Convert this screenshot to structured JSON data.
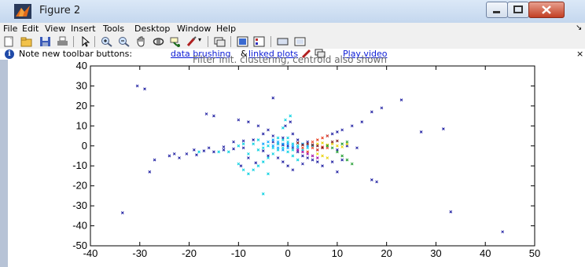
{
  "window": {
    "title": "Figure 2",
    "icons": {
      "app": "matlab-icon",
      "minimize": "minimize-icon",
      "maximize": "maximize-icon",
      "close": "close-icon"
    }
  },
  "menubar": {
    "items": [
      "File",
      "Edit",
      "View",
      "Insert",
      "Tools",
      "Desktop",
      "Window",
      "Help"
    ],
    "overflow_arrow": "↘"
  },
  "toolbar": {
    "buttons": [
      "new-figure-icon",
      "open-file-icon",
      "save-icon",
      "print-icon",
      "pointer-icon",
      "zoom-in-icon",
      "zoom-out-icon",
      "pan-icon",
      "rotate-3d-icon",
      "data-cursor-icon",
      "brush-icon",
      "link-plot-icon",
      "colorbar-icon",
      "legend-icon",
      "hide-plot-tools-icon",
      "show-plot-tools-icon"
    ]
  },
  "infobar": {
    "text": "Note new toolbar buttons:",
    "link_brushing": "data brushing",
    "amp": "&",
    "link_linked": "linked plots",
    "link_video": "Play video",
    "close": "×"
  },
  "figure": {
    "partial_title": "Filter init. clustering, centroid also shown"
  },
  "chart_data": {
    "type": "scatter",
    "title": "Filter init. clustering, centroid also shown",
    "xlim": [
      -40,
      50
    ],
    "ylim": [
      -50,
      40
    ],
    "x_ticks": [
      -40,
      -30,
      -20,
      -10,
      0,
      10,
      20,
      30,
      40,
      50
    ],
    "y_ticks": [
      -50,
      -40,
      -30,
      -20,
      -10,
      0,
      10,
      20,
      30,
      40
    ],
    "x_tick_labels": [
      "-40",
      "-30",
      "-20",
      "-10",
      "0",
      "10",
      "20",
      "30",
      "40",
      "50"
    ],
    "y_tick_labels": [
      "-50",
      "-40",
      "-30",
      "-20",
      "-10",
      "0",
      "10",
      "20",
      "30",
      "40"
    ],
    "grid": false,
    "series": [
      {
        "color": "#1a1aa0",
        "marker": "x",
        "values": [
          [
            -30.5,
            30
          ],
          [
            -29,
            28.5
          ],
          [
            -16.5,
            16
          ],
          [
            -15,
            15
          ],
          [
            -10,
            13
          ],
          [
            -8,
            12
          ],
          [
            -6,
            10
          ],
          [
            -4,
            8
          ],
          [
            -3,
            24
          ],
          [
            -33.5,
            -33.5
          ],
          [
            -28,
            -13
          ],
          [
            -27,
            -7
          ],
          [
            -22,
            -6
          ],
          [
            -20.5,
            -4
          ],
          [
            -18.5,
            -4.5
          ],
          [
            -17,
            -2.5
          ],
          [
            -15,
            -3
          ],
          [
            -13,
            -2
          ],
          [
            -11,
            -1.5
          ],
          [
            -9,
            -1
          ],
          [
            -8,
            -6
          ],
          [
            -6.5,
            -8.5
          ],
          [
            -9.5,
            -10
          ],
          [
            -5,
            -2.5
          ],
          [
            -4,
            -5
          ],
          [
            -3,
            2
          ],
          [
            -2,
            1
          ],
          [
            -1,
            0.5
          ],
          [
            0,
            0
          ],
          [
            1,
            -1
          ],
          [
            2,
            -3
          ],
          [
            3,
            -5
          ],
          [
            4,
            -6
          ],
          [
            5,
            -7
          ],
          [
            6,
            -8
          ],
          [
            7,
            -10
          ],
          [
            9,
            -8
          ],
          [
            11,
            -7
          ],
          [
            8,
            5
          ],
          [
            9,
            6
          ],
          [
            10,
            7
          ],
          [
            11,
            8
          ],
          [
            13,
            10
          ],
          [
            15,
            12
          ],
          [
            17,
            17
          ],
          [
            19,
            19
          ],
          [
            23,
            23
          ],
          [
            27,
            7
          ],
          [
            31.5,
            8.5
          ],
          [
            33,
            -33
          ],
          [
            43.5,
            -43
          ],
          [
            18,
            -18
          ],
          [
            17,
            -17
          ],
          [
            10,
            -13
          ],
          [
            10,
            -2
          ],
          [
            12,
            0
          ],
          [
            14,
            -1
          ],
          [
            6,
            -2
          ],
          [
            4,
            2
          ],
          [
            2,
            3
          ],
          [
            -1,
            4
          ],
          [
            -3,
            5
          ],
          [
            -5,
            6
          ],
          [
            -2,
            -6
          ],
          [
            -1,
            -8
          ],
          [
            0,
            -10
          ],
          [
            1,
            -12
          ],
          [
            3,
            -9
          ],
          [
            -0.5,
            10
          ],
          [
            0.5,
            12
          ],
          [
            1,
            6
          ],
          [
            -7,
            3
          ],
          [
            -9,
            2.5
          ],
          [
            -11,
            2
          ],
          [
            -13,
            -0.5
          ],
          [
            -16,
            -1
          ],
          [
            -19,
            -2
          ],
          [
            -23,
            -4
          ],
          [
            -24,
            -5
          ]
        ]
      },
      {
        "color": "#00cfe0",
        "marker": "x",
        "values": [
          [
            -1,
            -1
          ],
          [
            -2,
            -2
          ],
          [
            0,
            -3
          ],
          [
            1,
            -2
          ],
          [
            -3,
            -1
          ],
          [
            -4,
            0
          ],
          [
            -5,
            -1
          ],
          [
            -6,
            -2
          ],
          [
            -2,
            1
          ],
          [
            0,
            2
          ],
          [
            1,
            1
          ],
          [
            2,
            0
          ],
          [
            -1,
            3
          ],
          [
            -2,
            4
          ],
          [
            0,
            4
          ],
          [
            -3,
            -4
          ],
          [
            -4,
            -6
          ],
          [
            -5,
            -8
          ],
          [
            -6,
            -10
          ],
          [
            -7,
            -12
          ],
          [
            -4,
            -14
          ],
          [
            -5,
            -24
          ],
          [
            -8,
            -14
          ],
          [
            -9,
            -12
          ],
          [
            -10,
            -9
          ],
          [
            -8,
            -4
          ],
          [
            -12,
            -3
          ],
          [
            -14,
            -3
          ],
          [
            -18,
            -3
          ],
          [
            1,
            -5
          ],
          [
            2,
            -7
          ],
          [
            3,
            -2
          ],
          [
            4,
            -1
          ],
          [
            5,
            0
          ],
          [
            -1,
            9
          ],
          [
            -0.5,
            13
          ],
          [
            0.5,
            15
          ],
          [
            -9,
            1
          ],
          [
            -6,
            3
          ],
          [
            -7,
            1
          ],
          [
            -10,
            0
          ]
        ]
      },
      {
        "color": "#00a0ff",
        "marker": "x",
        "values": [
          [
            -3,
            0
          ],
          [
            -2,
            -1
          ],
          [
            -1,
            1
          ],
          [
            0,
            1
          ],
          [
            1,
            0
          ],
          [
            2,
            -1
          ],
          [
            -2,
            2
          ],
          [
            -3,
            3
          ],
          [
            -4,
            2
          ],
          [
            -5,
            1
          ],
          [
            0,
            -1
          ],
          [
            -1,
            -2
          ],
          [
            3,
            1
          ],
          [
            4,
            0
          ]
        ]
      },
      {
        "color": "#e83a1a",
        "marker": "x",
        "values": [
          [
            5,
            2
          ],
          [
            6,
            3
          ],
          [
            7,
            4
          ],
          [
            8,
            5
          ],
          [
            5,
            -1
          ],
          [
            6,
            -2
          ],
          [
            4,
            -3
          ],
          [
            3,
            -1
          ],
          [
            7,
            -0.5
          ],
          [
            8,
            -1
          ]
        ]
      },
      {
        "color": "#e8d000",
        "marker": "x",
        "values": [
          [
            6,
            1
          ],
          [
            7,
            1.5
          ],
          [
            8,
            0.5
          ],
          [
            9,
            1
          ],
          [
            10,
            0
          ],
          [
            11,
            -0.5
          ],
          [
            12,
            1
          ],
          [
            6,
            -4
          ],
          [
            7,
            -5
          ],
          [
            8,
            -6
          ]
        ]
      },
      {
        "color": "#7a1010",
        "marker": "x",
        "values": [
          [
            4,
            1
          ],
          [
            5,
            0.5
          ],
          [
            6,
            0
          ],
          [
            7,
            -1
          ],
          [
            3,
            0.5
          ],
          [
            2,
            1.5
          ],
          [
            9,
            2
          ],
          [
            10,
            2.5
          ]
        ]
      },
      {
        "color": "#1a9a2a",
        "marker": "x",
        "values": [
          [
            8,
            0
          ],
          [
            9,
            -1
          ],
          [
            10,
            -3
          ],
          [
            11,
            -5
          ],
          [
            12,
            -7
          ],
          [
            13,
            -9
          ],
          [
            11,
            1
          ],
          [
            12,
            2
          ]
        ]
      },
      {
        "color": "#a000a0",
        "marker": "x",
        "values": [
          [
            3,
            -3
          ],
          [
            4,
            -4
          ],
          [
            5,
            -5
          ],
          [
            6,
            -6
          ],
          [
            2,
            -2
          ]
        ]
      }
    ]
  }
}
